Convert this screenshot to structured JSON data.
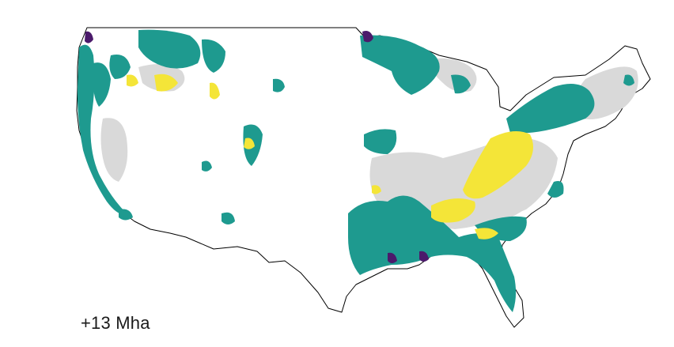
{
  "map": {
    "region": "contiguous-united-states",
    "palette": {
      "teal": "#1e9a8f",
      "gray": "#d9d9d9",
      "yellow": "#f4e538",
      "purple": "#4b1a6b",
      "outline": "#000000",
      "background": "#ffffff"
    }
  },
  "label": {
    "text": "+13 Mha"
  }
}
